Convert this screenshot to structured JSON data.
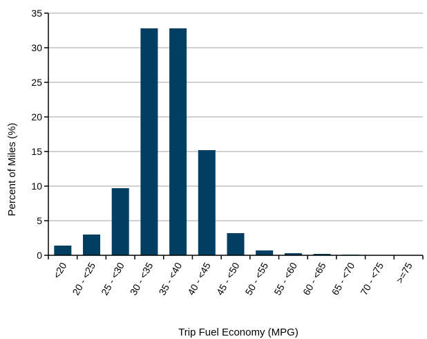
{
  "chart_data": {
    "type": "bar",
    "categories": [
      "<20",
      "20 - <25",
      "25 - <30",
      "30 - <35",
      "35 - <40",
      "40 - <45",
      "45 - <50",
      "50 - <55",
      "55 - <60",
      "60 - <65",
      "65 - <70",
      "70 - <75",
      ">=75"
    ],
    "values": [
      1.4,
      3.0,
      9.7,
      32.8,
      32.8,
      15.2,
      3.2,
      0.7,
      0.3,
      0.2,
      0.1,
      0.05,
      0.05
    ],
    "xlabel": "Trip Fuel Economy (MPG)",
    "ylabel": "Percent of Miles (%)",
    "ylim": [
      0,
      35
    ],
    "yticks": [
      0,
      5,
      10,
      15,
      20,
      25,
      30,
      35
    ],
    "grid": true,
    "legend": "none",
    "colors": {
      "bar": "#003f62",
      "grid": "#d0d0d0",
      "axis": "#000000"
    }
  }
}
